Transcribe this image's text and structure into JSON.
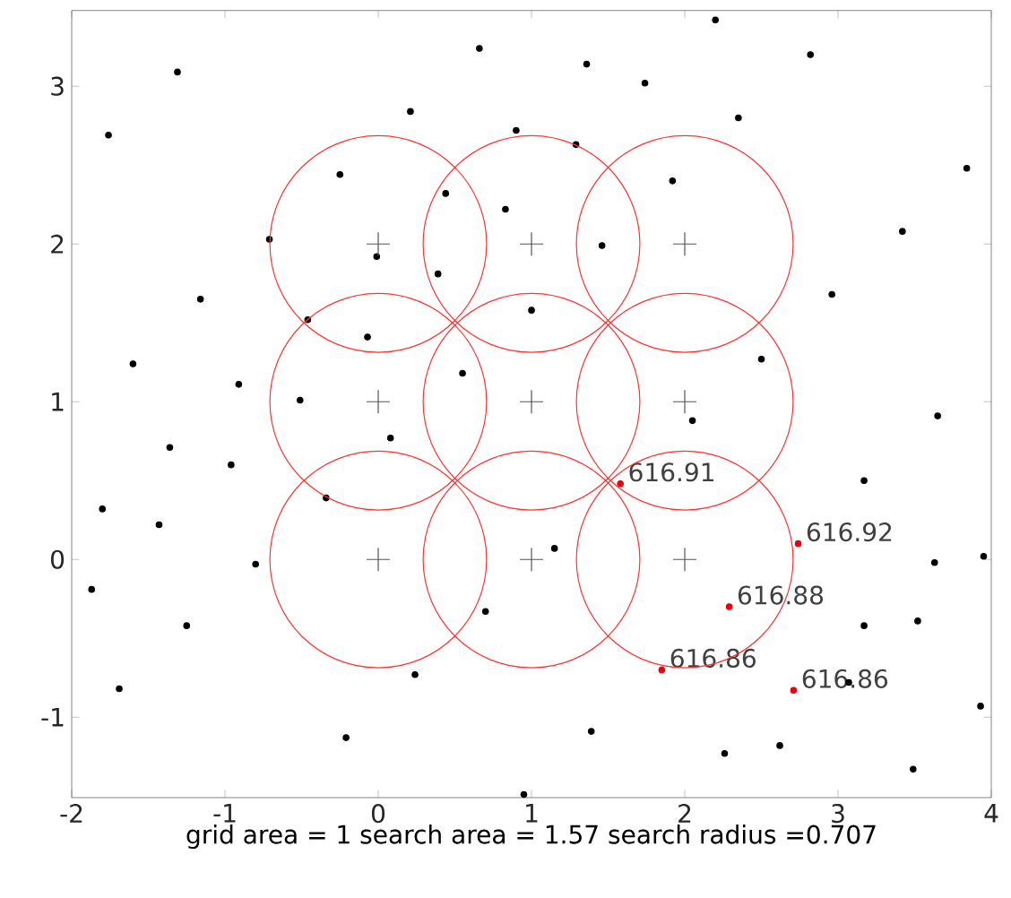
{
  "chart_data": {
    "type": "scatter",
    "xlabel": "grid area = 1  search area = 1.57  search radius =0.707",
    "xlim": [
      -2,
      4
    ],
    "ylim": [
      -1.51,
      3.48
    ],
    "xticks": [
      -2,
      -1,
      0,
      1,
      2,
      3,
      4
    ],
    "yticks": [
      -1,
      0,
      1,
      2,
      3
    ],
    "annotations": [
      {
        "text": "616.91",
        "x": 1.58,
        "y": 0.48
      },
      {
        "text": "616.92",
        "x": 2.74,
        "y": 0.1
      },
      {
        "text": "616.88",
        "x": 2.29,
        "y": -0.3
      },
      {
        "text": "616.86",
        "x": 1.85,
        "y": -0.7
      },
      {
        "text": "616.86",
        "x": 2.71,
        "y": -0.83
      }
    ],
    "series": [
      {
        "marker": "circle",
        "color": "#000000",
        "x": [
          0.66,
          -1.31,
          -1.76,
          0.21,
          0.9,
          -0.25,
          0.44,
          0.83,
          -0.71,
          -0.01,
          0.39,
          -1.16,
          -0.46,
          -0.07,
          -1.6,
          -0.91,
          0.55,
          -0.51,
          2.2,
          1.36,
          1.74,
          2.82,
          2.35,
          1.29,
          1.92,
          3.84,
          3.42,
          1.46,
          2.96,
          1.0,
          2.5,
          0.08,
          -1.36,
          -0.96,
          -1.8,
          -1.43,
          -0.34,
          -0.8,
          -1.87,
          -1.25,
          0.7,
          -1.69,
          0.24,
          -0.21,
          0.95,
          2.05,
          3.65,
          3.17,
          1.15,
          3.63,
          3.95,
          3.17,
          3.52,
          3.93,
          3.07,
          1.39,
          2.26,
          2.62,
          3.49
        ],
        "values": [
          3.24,
          3.09,
          2.69,
          2.84,
          2.72,
          2.44,
          2.32,
          2.22,
          2.03,
          1.92,
          1.81,
          1.65,
          1.52,
          1.41,
          1.24,
          1.11,
          1.18,
          1.01,
          3.42,
          3.14,
          3.02,
          3.2,
          2.8,
          2.63,
          2.4,
          2.48,
          2.08,
          1.99,
          1.68,
          1.58,
          1.27,
          0.77,
          0.71,
          0.6,
          0.32,
          0.22,
          0.39,
          -0.03,
          -0.19,
          -0.42,
          -0.33,
          -0.82,
          -0.73,
          -1.13,
          -1.49,
          0.88,
          0.91,
          0.5,
          0.07,
          -0.02,
          0.02,
          -0.42,
          -0.39,
          -0.93,
          -0.78,
          -1.09,
          -1.23,
          -1.18,
          -1.33
        ]
      },
      {
        "type": "bubble",
        "color": "#ff3333",
        "x": [
          0,
          1,
          2,
          0,
          1,
          2,
          0,
          1,
          2
        ],
        "values": [
          2,
          2,
          2,
          1,
          1,
          1,
          0,
          0,
          0
        ],
        "sizes": [
          1,
          1,
          1,
          1,
          1,
          1,
          1,
          1,
          1
        ]
      },
      {
        "marker": "cross",
        "color": "#555555",
        "x": [
          0,
          1,
          2,
          0,
          1,
          2,
          0,
          1,
          2
        ],
        "values": [
          2,
          2,
          2,
          1,
          1,
          1,
          0,
          0,
          0
        ]
      },
      {
        "marker": "circle",
        "color": "#e8000b",
        "x": [
          1.58,
          2.74,
          2.29,
          1.85,
          2.71
        ],
        "values": [
          0.48,
          0.1,
          -0.3,
          -0.7,
          -0.83
        ]
      }
    ]
  }
}
